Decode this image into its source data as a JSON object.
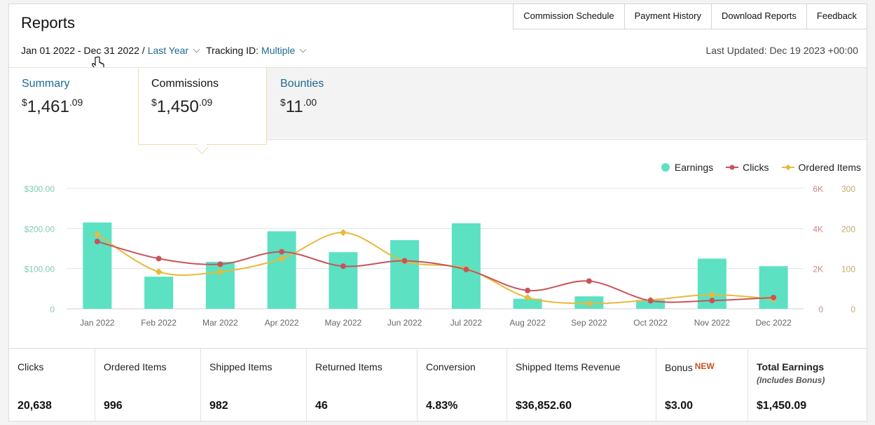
{
  "header": {
    "title": "Reports"
  },
  "nav": {
    "commission_schedule": "Commission Schedule",
    "payment_history": "Payment History",
    "download_reports": "Download Reports",
    "feedback": "Feedback"
  },
  "filters": {
    "date_range": "Jan 01 2022 - Dec 31 2022 /",
    "period": "Last Year",
    "tracking_label": "Tracking ID:",
    "tracking_value": "Multiple"
  },
  "last_updated": "Last Updated: Dec 19 2023 +00:00",
  "tabs": [
    {
      "label": "Summary",
      "currency": "$",
      "whole": "1,461",
      "cents": ".09"
    },
    {
      "label": "Commissions",
      "currency": "$",
      "whole": "1,450",
      "cents": ".09"
    },
    {
      "label": "Bounties",
      "currency": "$",
      "whole": "11",
      "cents": ".00"
    }
  ],
  "legend": {
    "earnings": "Earnings",
    "clicks": "Clicks",
    "ordered": "Ordered Items"
  },
  "colors": {
    "earnings": "#5ce1c2",
    "clicks": "#c9535a",
    "ordered": "#e9b93b",
    "link": "#1e6a93",
    "accent": "#c7511f"
  },
  "chart_data": {
    "type": "bar",
    "categories": [
      "Jan 2022",
      "Feb 2022",
      "Mar 2022",
      "Apr 2022",
      "May 2022",
      "Jun 2022",
      "Jul 2022",
      "Aug 2022",
      "Sep 2022",
      "Oct 2022",
      "Nov 2022",
      "Dec 2022"
    ],
    "left_axis": {
      "ticks": [
        "0",
        "$100.00",
        "$200.00",
        "$300.00"
      ],
      "range": [
        0,
        300
      ]
    },
    "right_axis_clicks": {
      "ticks": [
        "0",
        "2K",
        "4K",
        "6K"
      ],
      "range": [
        0,
        6000
      ]
    },
    "right_axis_items": {
      "ticks": [
        "0",
        "100",
        "200",
        "300"
      ],
      "range": [
        0,
        300
      ]
    },
    "series": [
      {
        "name": "Earnings",
        "type": "bar",
        "axis": "left",
        "values": [
          215,
          80,
          117,
          193,
          141,
          171,
          213,
          25,
          31,
          22,
          125,
          106
        ]
      },
      {
        "name": "Clicks",
        "type": "line",
        "axis": "right_clicks",
        "values": [
          3350,
          2500,
          2220,
          2840,
          2120,
          2390,
          1960,
          910,
          1380,
          400,
          410,
          560
        ]
      },
      {
        "name": "Ordered Items",
        "type": "line",
        "axis": "right_items",
        "values": [
          185,
          92,
          92,
          125,
          190,
          118,
          100,
          28,
          13,
          22,
          35,
          24
        ]
      }
    ],
    "grid": true,
    "legend_position": "top-right"
  },
  "stats": [
    {
      "label": "Clicks",
      "value": "20,638"
    },
    {
      "label": "Ordered Items",
      "value": "996"
    },
    {
      "label": "Shipped Items",
      "value": "982"
    },
    {
      "label": "Returned Items",
      "value": "46"
    },
    {
      "label": "Conversion",
      "value": "4.83%"
    },
    {
      "label": "Shipped Items Revenue",
      "value": "$36,852.60"
    },
    {
      "label": "Bonus",
      "badge": "NEW",
      "value": "$3.00"
    },
    {
      "label": "Total Earnings",
      "sub": "(Includes Bonus)",
      "value": "$1,450.09"
    }
  ]
}
